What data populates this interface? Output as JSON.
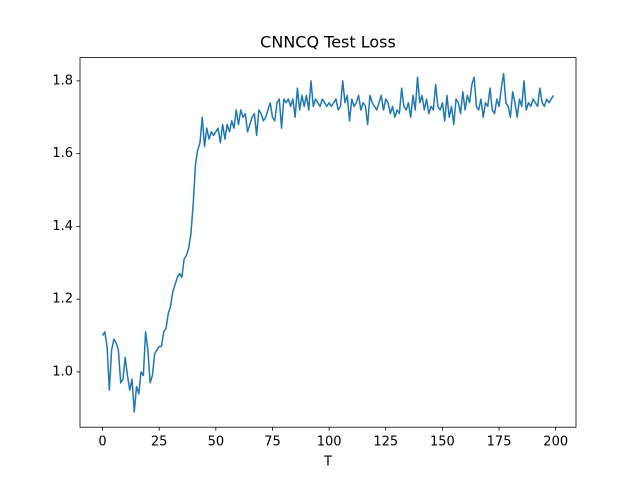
{
  "chart_data": {
    "type": "line",
    "title": "CNNCQ Test Loss",
    "x_label": "T",
    "color": "#1f77b4",
    "x": [
      0,
      1,
      2,
      3,
      4,
      5,
      6,
      7,
      8,
      9,
      10,
      11,
      12,
      13,
      14,
      15,
      16,
      17,
      18,
      19,
      20,
      21,
      22,
      23,
      24,
      25,
      26,
      27,
      28,
      29,
      30,
      31,
      32,
      33,
      34,
      35,
      36,
      37,
      38,
      39,
      40,
      41,
      42,
      43,
      44,
      45,
      46,
      47,
      48,
      49,
      50,
      51,
      52,
      53,
      54,
      55,
      56,
      57,
      58,
      59,
      60,
      61,
      62,
      63,
      64,
      65,
      66,
      67,
      68,
      69,
      70,
      71,
      72,
      73,
      74,
      75,
      76,
      77,
      78,
      79,
      80,
      81,
      82,
      83,
      84,
      85,
      86,
      87,
      88,
      89,
      90,
      91,
      92,
      93,
      94,
      95,
      96,
      97,
      98,
      99,
      100,
      101,
      102,
      103,
      104,
      105,
      106,
      107,
      108,
      109,
      110,
      111,
      112,
      113,
      114,
      115,
      116,
      117,
      118,
      119,
      120,
      121,
      122,
      123,
      124,
      125,
      126,
      127,
      128,
      129,
      130,
      131,
      132,
      133,
      134,
      135,
      136,
      137,
      138,
      139,
      140,
      141,
      142,
      143,
      144,
      145,
      146,
      147,
      148,
      149,
      150,
      151,
      152,
      153,
      154,
      155,
      156,
      157,
      158,
      159,
      160,
      161,
      162,
      163,
      164,
      165,
      166,
      167,
      168,
      169,
      170,
      171,
      172,
      173,
      174,
      175,
      176,
      177,
      178,
      179,
      180,
      181,
      182,
      183,
      184,
      185,
      186,
      187,
      188,
      189,
      190,
      191,
      192,
      193,
      194,
      195,
      196,
      197,
      198,
      199
    ],
    "values": [
      1.1,
      1.11,
      1.07,
      0.95,
      1.06,
      1.09,
      1.08,
      1.06,
      0.97,
      0.98,
      1.04,
      0.99,
      0.95,
      0.98,
      0.89,
      0.96,
      0.94,
      1.0,
      0.99,
      1.11,
      1.06,
      0.97,
      0.99,
      1.05,
      1.06,
      1.07,
      1.07,
      1.11,
      1.12,
      1.16,
      1.18,
      1.22,
      1.24,
      1.26,
      1.27,
      1.26,
      1.31,
      1.32,
      1.34,
      1.38,
      1.46,
      1.57,
      1.61,
      1.63,
      1.7,
      1.62,
      1.67,
      1.64,
      1.66,
      1.65,
      1.66,
      1.67,
      1.63,
      1.68,
      1.64,
      1.68,
      1.66,
      1.69,
      1.67,
      1.72,
      1.68,
      1.72,
      1.7,
      1.71,
      1.66,
      1.68,
      1.7,
      1.71,
      1.65,
      1.72,
      1.71,
      1.69,
      1.7,
      1.72,
      1.74,
      1.7,
      1.69,
      1.74,
      1.75,
      1.67,
      1.75,
      1.74,
      1.75,
      1.73,
      1.75,
      1.7,
      1.78,
      1.72,
      1.76,
      1.73,
      1.76,
      1.72,
      1.8,
      1.73,
      1.75,
      1.74,
      1.73,
      1.75,
      1.74,
      1.73,
      1.74,
      1.73,
      1.74,
      1.75,
      1.72,
      1.73,
      1.8,
      1.74,
      1.76,
      1.69,
      1.75,
      1.73,
      1.74,
      1.76,
      1.72,
      1.74,
      1.73,
      1.68,
      1.76,
      1.74,
      1.73,
      1.72,
      1.74,
      1.76,
      1.72,
      1.75,
      1.74,
      1.71,
      1.73,
      1.7,
      1.72,
      1.71,
      1.78,
      1.73,
      1.72,
      1.74,
      1.7,
      1.76,
      1.72,
      1.81,
      1.74,
      1.76,
      1.72,
      1.75,
      1.71,
      1.73,
      1.72,
      1.79,
      1.73,
      1.72,
      1.74,
      1.69,
      1.76,
      1.7,
      1.73,
      1.68,
      1.75,
      1.74,
      1.71,
      1.77,
      1.72,
      1.76,
      1.74,
      1.79,
      1.81,
      1.73,
      1.72,
      1.75,
      1.7,
      1.74,
      1.73,
      1.78,
      1.72,
      1.71,
      1.75,
      1.73,
      1.78,
      1.82,
      1.74,
      1.73,
      1.7,
      1.77,
      1.74,
      1.7,
      1.75,
      1.73,
      1.8,
      1.72,
      1.74,
      1.73,
      1.75,
      1.74,
      1.73,
      1.78,
      1.74,
      1.73,
      1.75,
      1.74,
      1.75,
      1.76
    ],
    "xlim": [
      -9.95,
      208.95
    ],
    "xticks": [
      0,
      25,
      50,
      75,
      100,
      125,
      150,
      175,
      200
    ],
    "ylim": [
      0.848,
      1.864
    ],
    "yticks": [
      {
        "value": 1,
        "label": "1.0"
      },
      1.2,
      1.4,
      1.6,
      1.8
    ]
  }
}
